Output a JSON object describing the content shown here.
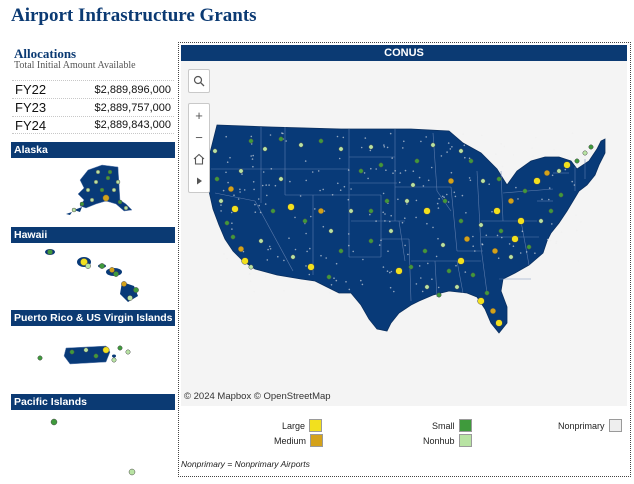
{
  "page": {
    "title": "Airport Infrastructure Grants"
  },
  "allocations": {
    "title": "Allocations",
    "subtitle": "Total Initial Amount Available",
    "rows": [
      {
        "year": "FY22",
        "amount": "$2,889,896,000"
      },
      {
        "year": "FY23",
        "amount": "$2,889,757,000"
      },
      {
        "year": "FY24",
        "amount": "$2,889,843,000"
      }
    ]
  },
  "regions": {
    "alaska": "Alaska",
    "hawaii": "Hawaii",
    "puerto_rico": "Puerto Rico & US Virgin Islands",
    "pacific": "Pacific Islands"
  },
  "conus": {
    "title": "CONUS"
  },
  "map": {
    "attribution": "© 2024 Mapbox  © OpenStreetMap",
    "controls": [
      "search-icon",
      "zoom-in-icon",
      "zoom-out-icon",
      "home-icon",
      "play-icon"
    ],
    "colors": {
      "land": "#083a78",
      "border": "#6a86b5",
      "water": "#f4f4f4",
      "large": "#f2e01e",
      "medium": "#d4a21a",
      "small": "#3f9a3c",
      "nonhub": "#b8e3a3",
      "nonprimary": "#eeeeee"
    }
  },
  "legend": {
    "items": [
      {
        "key": "large",
        "label": "Large",
        "color": "#f2e01e"
      },
      {
        "key": "medium",
        "label": "Medium",
        "color": "#d4a21a"
      },
      {
        "key": "small",
        "label": "Small",
        "color": "#3f9a3c"
      },
      {
        "key": "nonhub",
        "label": "Nonhub",
        "color": "#b8e3a3"
      },
      {
        "key": "nonprimary",
        "label": "Nonprimary",
        "color": "#eeeeee"
      }
    ],
    "footnote": "Nonprimary = Nonprimary Airports"
  }
}
